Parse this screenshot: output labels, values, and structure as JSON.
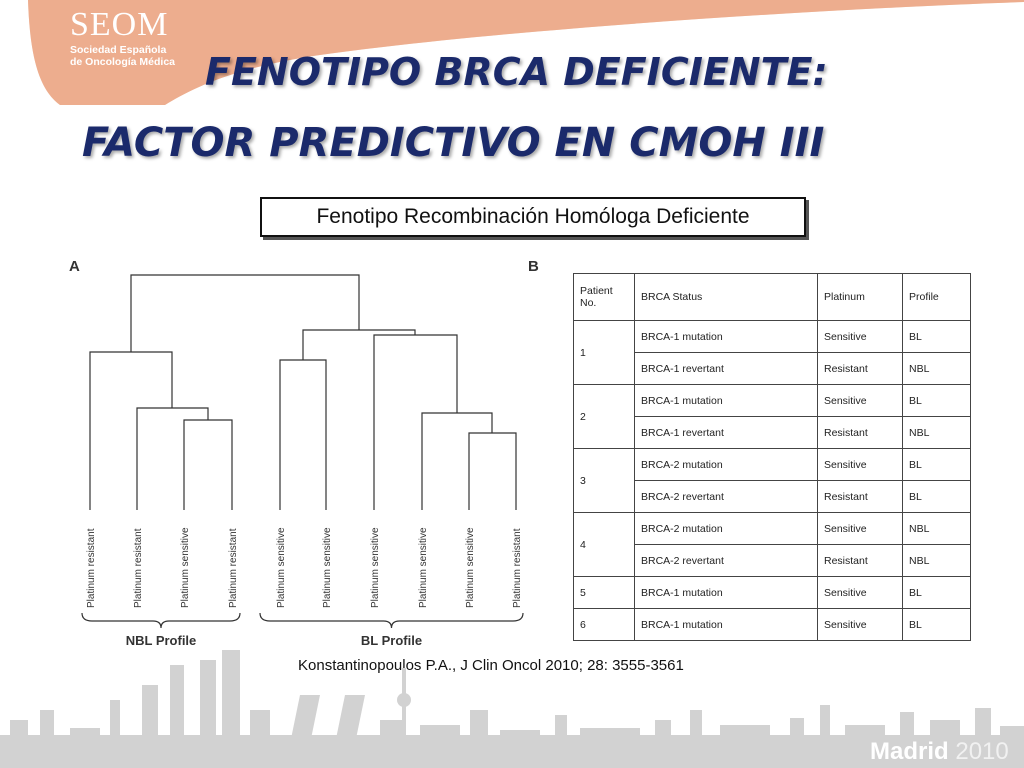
{
  "logo": {
    "name": "SEOM",
    "line1": "Sociedad Española",
    "line2": "de Oncología Médica"
  },
  "title": {
    "line1": "FENOTIPO BRCA DEFICIENTE:",
    "line2": "FACTOR PREDICTIVO EN CMOH III"
  },
  "subtitle": "Fenotipo Recombinación Homóloga Deficiente",
  "panel_a": {
    "label": "A",
    "leaves": [
      "Platinum resistant",
      "Platinum resistant",
      "Platinum sensitive",
      "Platinum resistant",
      "Platinum sensitive",
      "Platinum sensitive",
      "Platinum sensitive",
      "Platinum sensitive",
      "Platinum sensitive",
      "Platinum resistant"
    ],
    "groups": [
      "NBL Profile",
      "BL Profile"
    ]
  },
  "panel_b": {
    "label": "B",
    "headers": [
      "Patient No.",
      "BRCA Status",
      "Platinum",
      "Profile"
    ],
    "patients": [
      {
        "no": "1",
        "rows": [
          [
            "BRCA-1 mutation",
            "Sensitive",
            "BL"
          ],
          [
            "BRCA-1 revertant",
            "Resistant",
            "NBL"
          ]
        ]
      },
      {
        "no": "2",
        "rows": [
          [
            "BRCA-1 mutation",
            "Sensitive",
            "BL"
          ],
          [
            "BRCA-1 revertant",
            "Resistant",
            "NBL"
          ]
        ]
      },
      {
        "no": "3",
        "rows": [
          [
            "BRCA-2 mutation",
            "Sensitive",
            "BL"
          ],
          [
            "BRCA-2 revertant",
            "Resistant",
            "BL"
          ]
        ]
      },
      {
        "no": "4",
        "rows": [
          [
            "BRCA-2 mutation",
            "Sensitive",
            "NBL"
          ],
          [
            "BRCA-2 revertant",
            "Resistant",
            "NBL"
          ]
        ]
      },
      {
        "no": "5",
        "rows": [
          [
            "BRCA-1 mutation",
            "Sensitive",
            "BL"
          ]
        ]
      },
      {
        "no": "6",
        "rows": [
          [
            "BRCA-1 mutation",
            "Sensitive",
            "BL"
          ]
        ]
      }
    ]
  },
  "citation": "Konstantinopoulos P.A., J Clin Oncol  2010; 28: 3555-3561",
  "footer": {
    "city": "Madrid",
    "year": "2010"
  },
  "colors": {
    "banner": "#f0b89a",
    "title": "#1b2a6b",
    "skyline": "#cfcfcf"
  }
}
